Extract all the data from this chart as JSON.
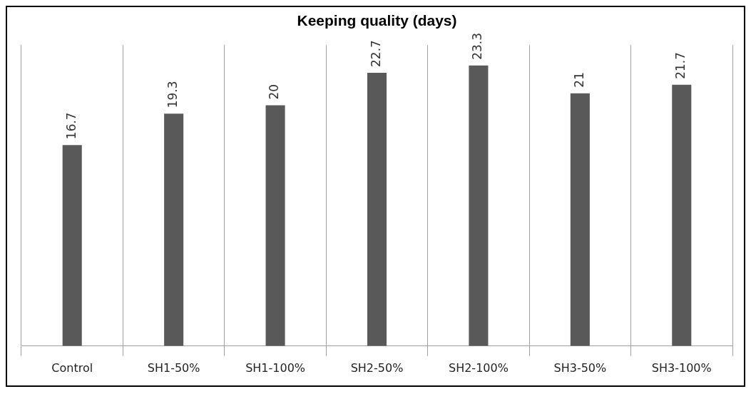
{
  "chart_data": {
    "type": "bar",
    "title": "Keeping quality (days)",
    "categories": [
      "Control",
      "SH1-50%",
      "SH1-100%",
      "SH2-50%",
      "SH2-100%",
      "SH3-50%",
      "SH3-100%"
    ],
    "values": [
      16.7,
      19.3,
      20,
      22.7,
      23.3,
      21,
      21.7
    ],
    "color": "#595959",
    "data_labels": true,
    "grid": "x",
    "legend": false
  }
}
